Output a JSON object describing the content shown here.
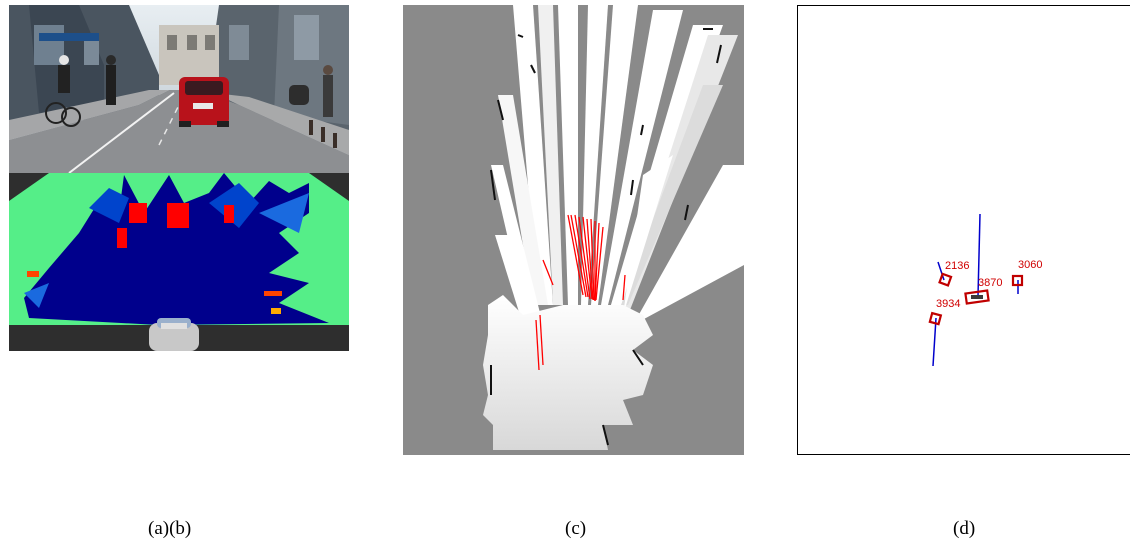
{
  "captions": {
    "ab": "(a)(b)",
    "c": "(c)",
    "d": "(d)"
  },
  "panel_d": {
    "track_ids": [
      "2136",
      "3060",
      "3870",
      "3934"
    ]
  },
  "colors": {
    "grid_unknown": "#8a8a8a",
    "grid_free": "#ffffff",
    "grid_occupied_dynamic": "#ff0000",
    "polar_bg": "#55ee88",
    "polar_free": "#00008c",
    "track_box": "#c00000",
    "velocity_line": "#0000cc"
  }
}
